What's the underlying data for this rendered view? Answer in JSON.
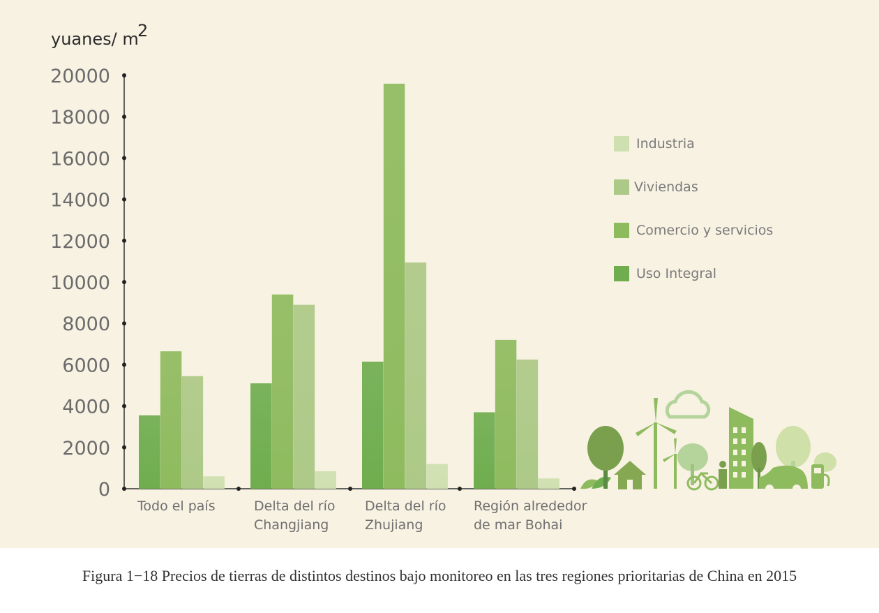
{
  "caption": "Figura 1−18 Precios de tierras de distintos destinos bajo monitoreo en las tres regiones prioritarias de China en 2015",
  "colors": {
    "background": "#f8f2e3",
    "Uso Integral": "#6fad4f",
    "Comercio y servicios": "#8fbb5f",
    "Viviendas": "#adc987",
    "Industria": "#cfe0b0"
  },
  "chart_data": {
    "type": "bar",
    "title": "",
    "xlabel": "",
    "ylabel": "yuanes/ m",
    "ylabel_superscript": "2",
    "ylim": [
      0,
      20000
    ],
    "yticks": [
      "0",
      "2000",
      "4000",
      "6000",
      "8000",
      "10000",
      "12000",
      "14000",
      "16000",
      "18000",
      "20000"
    ],
    "categories": [
      [
        "Todo el país"
      ],
      [
        "Delta del río",
        "Changjiang"
      ],
      [
        "Delta del río",
        "Zhujiang"
      ],
      [
        "Región alrededor",
        "de mar Bohai"
      ]
    ],
    "legend_position": "right",
    "legend": [
      "Industria",
      "Viviendas",
      "Comercio y servicios",
      "Uso Integral"
    ],
    "series": [
      {
        "name": "Uso Integral",
        "values": [
          3550,
          5100,
          6150,
          3700
        ]
      },
      {
        "name": "Comercio y servicios",
        "values": [
          6650,
          9400,
          19600,
          7200
        ]
      },
      {
        "name": "Viviendas",
        "values": [
          5450,
          8900,
          10950,
          6250
        ]
      },
      {
        "name": "Industria",
        "values": [
          600,
          850,
          1200,
          500
        ]
      }
    ]
  },
  "decoration": "eco-city-illustration"
}
